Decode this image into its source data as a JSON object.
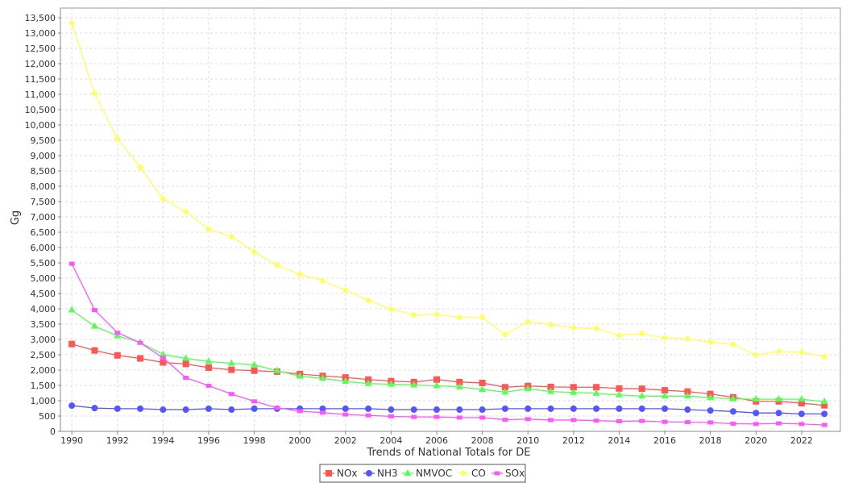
{
  "chart_data": {
    "type": "line",
    "title": "",
    "xlabel": "Trends of National Totals for DE",
    "ylabel": "Gg",
    "ylim": [
      0,
      13500
    ],
    "ytick_step": 500,
    "grid": true,
    "legend_position": "bottom",
    "x": [
      1990,
      1991,
      1992,
      1993,
      1994,
      1995,
      1996,
      1997,
      1998,
      1999,
      2000,
      2001,
      2002,
      2003,
      2004,
      2005,
      2006,
      2007,
      2008,
      2009,
      2010,
      2011,
      2012,
      2013,
      2014,
      2015,
      2016,
      2017,
      2018,
      2019,
      2020,
      2021,
      2022,
      2023
    ],
    "xticks": [
      1990,
      1992,
      1994,
      1996,
      1998,
      2000,
      2002,
      2004,
      2006,
      2008,
      2010,
      2012,
      2014,
      2016,
      2018,
      2020,
      2022
    ],
    "series": [
      {
        "name": "NOx",
        "color": "#ff5555",
        "marker": "square",
        "values": [
          2850,
          2640,
          2480,
          2380,
          2250,
          2200,
          2080,
          2010,
          1980,
          1950,
          1870,
          1810,
          1760,
          1690,
          1640,
          1610,
          1690,
          1610,
          1580,
          1440,
          1480,
          1450,
          1440,
          1440,
          1400,
          1390,
          1340,
          1300,
          1220,
          1110,
          980,
          980,
          920,
          850
        ]
      },
      {
        "name": "NH3",
        "color": "#5555ff",
        "marker": "circle",
        "values": [
          840,
          760,
          740,
          740,
          710,
          710,
          740,
          710,
          740,
          740,
          740,
          740,
          740,
          740,
          710,
          710,
          710,
          710,
          710,
          740,
          740,
          740,
          740,
          740,
          740,
          740,
          740,
          710,
          680,
          650,
          600,
          600,
          570,
          570
        ]
      },
      {
        "name": "NMVOC",
        "color": "#55ff55",
        "marker": "triangle",
        "values": [
          3960,
          3430,
          3120,
          2900,
          2510,
          2380,
          2280,
          2220,
          2170,
          1980,
          1800,
          1730,
          1630,
          1560,
          1540,
          1510,
          1490,
          1450,
          1370,
          1280,
          1390,
          1300,
          1270,
          1240,
          1190,
          1150,
          1150,
          1150,
          1100,
          1060,
          1050,
          1050,
          1050,
          970
        ]
      },
      {
        "name": "CO",
        "color": "#ffff55",
        "marker": "diamond",
        "values": [
          13320,
          11030,
          9550,
          8620,
          7590,
          7170,
          6600,
          6360,
          5860,
          5420,
          5120,
          4920,
          4610,
          4270,
          3990,
          3800,
          3820,
          3720,
          3720,
          3160,
          3580,
          3480,
          3380,
          3360,
          3130,
          3190,
          3050,
          3020,
          2910,
          2840,
          2490,
          2610,
          2580,
          2440
        ]
      },
      {
        "name": "SOx",
        "color": "#ff55ff",
        "marker": "rect",
        "values": [
          5470,
          3960,
          3220,
          2890,
          2400,
          1750,
          1490,
          1220,
          980,
          770,
          660,
          610,
          550,
          520,
          490,
          470,
          470,
          450,
          450,
          380,
          400,
          370,
          370,
          350,
          330,
          340,
          310,
          300,
          290,
          250,
          240,
          260,
          240,
          210
        ]
      }
    ]
  }
}
